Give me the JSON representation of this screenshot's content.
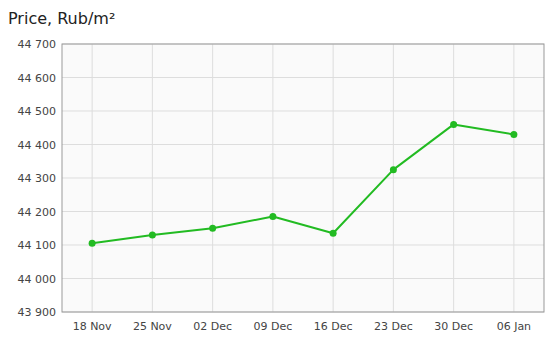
{
  "chart_data": {
    "type": "line",
    "title": "Price, Rub/m²",
    "categories": [
      "18 Nov",
      "25 Nov",
      "02 Dec",
      "09 Dec",
      "16 Dec",
      "23 Dec",
      "30 Dec",
      "06 Jan"
    ],
    "values": [
      44105,
      44130,
      44150,
      44185,
      44135,
      44325,
      44460,
      44430
    ],
    "color": "#22bb22",
    "marker": "circle",
    "line_style": "solid",
    "ylim": [
      43900,
      44700
    ],
    "yticks": [
      {
        "value": 43900,
        "label": "43 900"
      },
      {
        "value": 44000,
        "label": "44 000"
      },
      {
        "value": 44100,
        "label": "44 100"
      },
      {
        "value": 44200,
        "label": "44 200"
      },
      {
        "value": 44300,
        "label": "44 300"
      },
      {
        "value": 44400,
        "label": "44 400"
      },
      {
        "value": 44500,
        "label": "44 500"
      },
      {
        "value": 44600,
        "label": "44 600"
      },
      {
        "value": 44700,
        "label": "44 700"
      }
    ],
    "grid": true
  }
}
